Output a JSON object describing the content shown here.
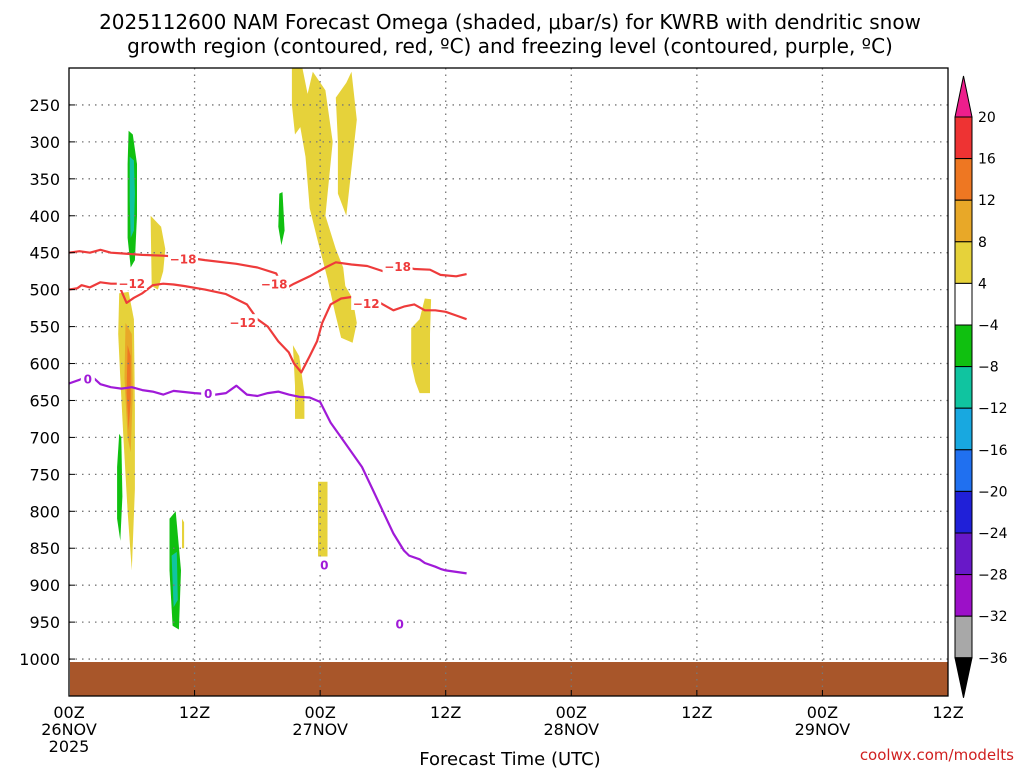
{
  "chart_data": {
    "type": "time-height contour",
    "title_line1": "2025112600 NAM Forecast Omega (shaded, μbar/s) for KWRB with dendritic snow",
    "title_line2": "growth region (contoured, red, ºC) and freezing level (contoured, purple, ºC)",
    "xlabel": "Forecast Time (UTC)",
    "x_unit": "forecast hour",
    "x_range": [
      0,
      84
    ],
    "y_unit": "hPa",
    "y_range": [
      1050,
      200
    ],
    "y_ticks": [
      250,
      300,
      350,
      400,
      450,
      500,
      550,
      600,
      650,
      700,
      750,
      800,
      850,
      900,
      950,
      1000
    ],
    "x_ticks": [
      {
        "hour": 0,
        "line1": "00Z",
        "line2": "26NOV",
        "line3": "2025"
      },
      {
        "hour": 12,
        "line1": "12Z",
        "line2": "",
        "line3": ""
      },
      {
        "hour": 24,
        "line1": "00Z",
        "line2": "27NOV",
        "line3": ""
      },
      {
        "hour": 36,
        "line1": "12Z",
        "line2": "",
        "line3": ""
      },
      {
        "hour": 48,
        "line1": "00Z",
        "line2": "28NOV",
        "line3": ""
      },
      {
        "hour": 60,
        "line1": "12Z",
        "line2": "",
        "line3": ""
      },
      {
        "hour": 72,
        "line1": "00Z",
        "line2": "29NOV",
        "line3": ""
      },
      {
        "hour": 84,
        "line1": "12Z",
        "line2": "",
        "line3": ""
      }
    ],
    "colorbar": {
      "labels": [
        "20",
        "16",
        "12",
        "8",
        "4",
        "−4",
        "−8",
        "−12",
        "−16",
        "−20",
        "−24",
        "−28",
        "−32",
        "−36"
      ],
      "colors": [
        "#ee3333",
        "#ee7722",
        "#e8a828",
        "#e6d23a",
        "#ffffff",
        "#10c010",
        "#10c4a0",
        "#18a8e0",
        "#2070f0",
        "#2020d8",
        "#6818c8",
        "#9c10c8",
        "#a8a8a8"
      ],
      "top_arrow_color": "#ee1e8c",
      "bottom_arrow_color": "#000000"
    },
    "omega_regions": [
      {
        "color": "#10c010",
        "points": [
          [
            5.7,
            285
          ],
          [
            6.1,
            290
          ],
          [
            6.5,
            330
          ],
          [
            6.5,
            400
          ],
          [
            6.3,
            460
          ],
          [
            5.9,
            470
          ],
          [
            5.6,
            430
          ],
          [
            5.6,
            330
          ]
        ]
      },
      {
        "color": "#10c4a0",
        "points": [
          [
            5.8,
            320
          ],
          [
            6.2,
            325
          ],
          [
            6.3,
            370
          ],
          [
            6.2,
            420
          ],
          [
            5.9,
            430
          ],
          [
            5.8,
            380
          ]
        ]
      },
      {
        "color": "#e6d23a",
        "points": [
          [
            7.8,
            400
          ],
          [
            8.8,
            415
          ],
          [
            9.2,
            445
          ],
          [
            9.0,
            475
          ],
          [
            8.5,
            500
          ],
          [
            7.9,
            495
          ]
        ]
      },
      {
        "color": "#e6d23a",
        "points": [
          [
            4.8,
            505
          ],
          [
            5.7,
            503
          ],
          [
            6.2,
            540
          ],
          [
            6.3,
            660
          ],
          [
            6.3,
            770
          ],
          [
            6.0,
            880
          ],
          [
            5.6,
            800
          ],
          [
            5.2,
            700
          ],
          [
            4.9,
            620
          ],
          [
            4.7,
            560
          ]
        ]
      },
      {
        "color": "#e8a828",
        "points": [
          [
            5.4,
            545
          ],
          [
            6.0,
            560
          ],
          [
            6.1,
            640
          ],
          [
            5.9,
            720
          ],
          [
            5.6,
            700
          ],
          [
            5.3,
            620
          ]
        ]
      },
      {
        "color": "#ee7722",
        "points": [
          [
            5.6,
            575
          ],
          [
            5.9,
            590
          ],
          [
            5.9,
            650
          ],
          [
            5.7,
            690
          ],
          [
            5.5,
            640
          ]
        ]
      },
      {
        "color": "#10c010",
        "points": [
          [
            4.8,
            695
          ],
          [
            5.0,
            700
          ],
          [
            5.1,
            780
          ],
          [
            4.9,
            840
          ],
          [
            4.6,
            810
          ],
          [
            4.6,
            740
          ]
        ]
      },
      {
        "color": "#10c010",
        "points": [
          [
            9.6,
            810
          ],
          [
            10.2,
            800
          ],
          [
            10.7,
            880
          ],
          [
            10.5,
            960
          ],
          [
            9.9,
            955
          ],
          [
            9.6,
            880
          ]
        ]
      },
      {
        "color": "#10c4a0",
        "points": [
          [
            9.8,
            860
          ],
          [
            10.3,
            855
          ],
          [
            10.4,
            920
          ],
          [
            10.0,
            930
          ]
        ]
      },
      {
        "color": "#e6d23a",
        "points": [
          [
            10.8,
            810
          ],
          [
            11.0,
            815
          ],
          [
            11.0,
            850
          ],
          [
            10.8,
            850
          ]
        ]
      },
      {
        "color": "#10c010",
        "points": [
          [
            20.1,
            370
          ],
          [
            20.4,
            368
          ],
          [
            20.6,
            420
          ],
          [
            20.3,
            440
          ],
          [
            20.0,
            415
          ]
        ]
      },
      {
        "color": "#e6d23a",
        "points": [
          [
            21.3,
            200
          ],
          [
            22.3,
            200
          ],
          [
            22.8,
            235
          ],
          [
            22.3,
            265
          ],
          [
            23.3,
            205
          ],
          [
            24.5,
            230
          ],
          [
            25.2,
            300
          ],
          [
            24.5,
            400
          ],
          [
            25.5,
            445
          ],
          [
            26.2,
            470
          ],
          [
            26.4,
            495
          ],
          [
            27.1,
            512
          ],
          [
            27.5,
            545
          ],
          [
            27.1,
            572
          ],
          [
            26.0,
            565
          ],
          [
            25.4,
            530
          ],
          [
            24.7,
            485
          ],
          [
            23.7,
            430
          ],
          [
            23.0,
            390
          ],
          [
            22.6,
            320
          ],
          [
            22.1,
            280
          ],
          [
            21.6,
            290
          ],
          [
            21.3,
            250
          ]
        ]
      },
      {
        "color": "#e6d23a",
        "points": [
          [
            25.5,
            240
          ],
          [
            26.5,
            220
          ],
          [
            27.0,
            205
          ],
          [
            27.5,
            270
          ],
          [
            26.5,
            400
          ],
          [
            25.7,
            370
          ],
          [
            25.7,
            300
          ]
        ]
      },
      {
        "color": "#e6d23a",
        "points": [
          [
            21.4,
            575
          ],
          [
            22.0,
            590
          ],
          [
            22.5,
            640
          ],
          [
            22.5,
            675
          ],
          [
            21.6,
            675
          ],
          [
            21.6,
            630
          ]
        ]
      },
      {
        "color": "#e6d23a",
        "points": [
          [
            23.8,
            760
          ],
          [
            24.7,
            760
          ],
          [
            24.7,
            865
          ],
          [
            23.8,
            865
          ]
        ]
      },
      {
        "color": "#e6d23a",
        "points": [
          [
            32.7,
            552
          ],
          [
            33.5,
            540
          ],
          [
            34.0,
            512
          ],
          [
            34.6,
            513
          ],
          [
            34.5,
            560
          ],
          [
            34.5,
            640
          ],
          [
            33.5,
            640
          ],
          [
            33.1,
            625
          ],
          [
            32.7,
            600
          ]
        ]
      }
    ],
    "contours": [
      {
        "name": "dgz -18",
        "label": "−18",
        "color": "#ee3b3b",
        "points": [
          [
            0,
            450
          ],
          [
            1,
            448
          ],
          [
            2,
            450
          ],
          [
            3,
            446
          ],
          [
            4,
            450
          ],
          [
            5,
            451
          ],
          [
            7,
            453
          ],
          [
            9,
            454
          ],
          [
            11,
            456
          ],
          [
            13,
            460
          ],
          [
            16,
            465
          ],
          [
            18,
            470
          ],
          [
            19.8,
            478
          ],
          [
            20.5,
            500
          ],
          [
            21.5,
            492
          ],
          [
            23,
            482
          ],
          [
            24.5,
            470
          ],
          [
            25.5,
            463
          ],
          [
            27,
            466
          ],
          [
            28.5,
            468
          ],
          [
            30,
            475
          ],
          [
            31,
            472
          ],
          [
            32,
            468
          ],
          [
            33,
            472
          ],
          [
            34.5,
            473
          ],
          [
            35.5,
            480
          ],
          [
            37,
            482
          ],
          [
            38,
            479
          ]
        ],
        "labels": [
          {
            "text": "−18",
            "hour": 10.9,
            "hpa": 458
          },
          {
            "text": "−18",
            "hour": 19.6,
            "hpa": 492
          },
          {
            "text": "−18",
            "hour": 31.4,
            "hpa": 468
          }
        ]
      },
      {
        "name": "dgz -12",
        "label": "−12",
        "color": "#ee3b3b",
        "points": [
          [
            0,
            500
          ],
          [
            0.8,
            498
          ],
          [
            1.2,
            494
          ],
          [
            2,
            497
          ],
          [
            3,
            490
          ],
          [
            4,
            492
          ],
          [
            4.7,
            492
          ],
          [
            5.5,
            518
          ],
          [
            6.2,
            511
          ],
          [
            7,
            505
          ],
          [
            8,
            494
          ],
          [
            9,
            492
          ],
          [
            10,
            493
          ],
          [
            11,
            495
          ],
          [
            13,
            500
          ],
          [
            15,
            506
          ],
          [
            17,
            520
          ],
          [
            18,
            540
          ],
          [
            19,
            550
          ],
          [
            20,
            570
          ],
          [
            21,
            585
          ],
          [
            21.5,
            600
          ],
          [
            22.2,
            612
          ],
          [
            23,
            590
          ],
          [
            23.7,
            570
          ],
          [
            24.2,
            545
          ],
          [
            25,
            520
          ],
          [
            26,
            512
          ],
          [
            27,
            510
          ],
          [
            28,
            509
          ],
          [
            29,
            512
          ],
          [
            30,
            520
          ],
          [
            31,
            528
          ],
          [
            32,
            523
          ],
          [
            33,
            520
          ],
          [
            34,
            528
          ],
          [
            35,
            528
          ],
          [
            36,
            530
          ],
          [
            37,
            535
          ],
          [
            38,
            540
          ]
        ],
        "labels": [
          {
            "text": "−12",
            "hour": 6.0,
            "hpa": 491
          },
          {
            "text": "−12",
            "hour": 16.6,
            "hpa": 544
          },
          {
            "text": "−12",
            "hour": 28.4,
            "hpa": 518
          }
        ]
      },
      {
        "name": "freezing level 0",
        "label": "0",
        "color": "#a01ad8",
        "points": [
          [
            0,
            627
          ],
          [
            1,
            622
          ],
          [
            2,
            615
          ],
          [
            3,
            628
          ],
          [
            4,
            632
          ],
          [
            5,
            634
          ],
          [
            6,
            632
          ],
          [
            7,
            636
          ],
          [
            8,
            638
          ],
          [
            9,
            642
          ],
          [
            10,
            637
          ],
          [
            12,
            640
          ],
          [
            14,
            642
          ],
          [
            15,
            640
          ],
          [
            16,
            630
          ],
          [
            17,
            642
          ],
          [
            18,
            644
          ],
          [
            19,
            640
          ],
          [
            20,
            638
          ],
          [
            21,
            642
          ],
          [
            22,
            645
          ],
          [
            23,
            646
          ],
          [
            24,
            652
          ],
          [
            25,
            680
          ],
          [
            26,
            700
          ],
          [
            28,
            740
          ],
          [
            29,
            770
          ],
          [
            30,
            800
          ],
          [
            31,
            830
          ],
          [
            32,
            853
          ],
          [
            32.5,
            860
          ],
          [
            33.5,
            865
          ],
          [
            34,
            870
          ],
          [
            35,
            875
          ],
          [
            35.5,
            878
          ],
          [
            36,
            880
          ],
          [
            37,
            882
          ],
          [
            38,
            884
          ]
        ],
        "labels": [
          {
            "text": "0",
            "hour": 1.8,
            "hpa": 620
          },
          {
            "text": "0",
            "hour": 13.3,
            "hpa": 640
          },
          {
            "text": "0",
            "hour": 24.4,
            "hpa": 872
          },
          {
            "text": "0",
            "hour": 31.6,
            "hpa": 952
          }
        ]
      }
    ],
    "credit": "coolwx.com/modelts"
  }
}
